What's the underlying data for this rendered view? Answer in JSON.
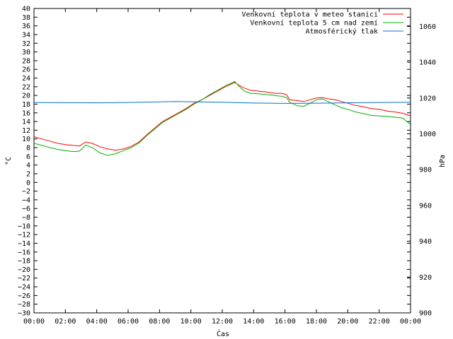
{
  "chart_data": {
    "type": "line",
    "xlabel": "Čas",
    "ylabel": "°C",
    "y2label": "hPa",
    "x_ticks": [
      "00:00",
      "02:00",
      "04:00",
      "06:00",
      "08:00",
      "10:00",
      "12:00",
      "14:00",
      "16:00",
      "18:00",
      "20:00",
      "22:00",
      "00:00"
    ],
    "xlim_hours": [
      0,
      24
    ],
    "ylim": [
      -30,
      40
    ],
    "y_step": 2,
    "y2lim": [
      900,
      1070
    ],
    "y2_ticks": [
      900,
      920,
      940,
      960,
      980,
      1000,
      1020,
      1040,
      1060
    ],
    "legend_position": "top-right",
    "grid": false,
    "series": [
      {
        "name": "Venkovní teplota v meteo stanici",
        "axis": "left",
        "color": "#ff0000",
        "x": [
          0,
          0.5,
          1,
          1.5,
          2,
          2.5,
          2.9,
          3.3,
          3.7,
          4.2,
          4.7,
          5.2,
          5.7,
          6.2,
          6.7,
          7.2,
          7.7,
          8.2,
          8.7,
          9.2,
          9.7,
          10.2,
          10.7,
          11.2,
          11.7,
          12.2,
          12.5,
          12.8,
          13.1,
          13.4,
          13.8,
          14.3,
          14.8,
          15.3,
          15.8,
          16.1,
          16.3,
          16.8,
          17.2,
          17.6,
          18,
          18.4,
          18.8,
          19.2,
          19.6,
          20,
          20.5,
          21,
          21.5,
          22,
          22.5,
          23,
          23.5,
          24
        ],
        "values": [
          10.5,
          10,
          9.5,
          9,
          8.7,
          8.5,
          8.4,
          9.3,
          9,
          8.2,
          7.7,
          7.4,
          7.7,
          8.3,
          9.3,
          11,
          12.5,
          14,
          15,
          16,
          17,
          18.2,
          19,
          20,
          21,
          22,
          22.5,
          23,
          22.3,
          21.7,
          21.2,
          21,
          20.8,
          20.5,
          20.5,
          20.2,
          19,
          18.8,
          18.6,
          19,
          19.4,
          19.5,
          19.2,
          19,
          18.6,
          18.2,
          17.7,
          17.4,
          17,
          16.8,
          16.4,
          16.2,
          15.9,
          15.3
        ]
      },
      {
        "name": "Venkovní teplota 5 cm nad zemí",
        "axis": "left",
        "color": "#00b000",
        "x": [
          0,
          0.5,
          1,
          1.5,
          2,
          2.5,
          2.9,
          3.3,
          3.7,
          4.2,
          4.7,
          5.2,
          5.7,
          6.2,
          6.7,
          7.2,
          7.7,
          8.2,
          8.7,
          9.2,
          9.7,
          10.2,
          10.7,
          11.2,
          11.7,
          12.2,
          12.5,
          12.8,
          13.1,
          13.4,
          13.8,
          14.3,
          14.8,
          15.3,
          15.8,
          16.1,
          16.3,
          16.8,
          17.2,
          17.6,
          18,
          18.4,
          18.8,
          19.2,
          19.6,
          20,
          20.5,
          21,
          21.5,
          22,
          22.5,
          23,
          23.5,
          24
        ],
        "values": [
          9,
          8.5,
          8,
          7.6,
          7.3,
          7.1,
          7.2,
          8.6,
          8,
          6.8,
          6.2,
          6.6,
          7.3,
          8,
          9.1,
          10.8,
          12.3,
          13.8,
          14.8,
          15.8,
          16.8,
          18,
          19,
          20.2,
          21.2,
          22.2,
          22.7,
          23.2,
          22,
          21,
          20.5,
          20.4,
          20.2,
          20,
          19.8,
          19.5,
          18.4,
          17.6,
          17.5,
          18.2,
          19,
          19.2,
          18.5,
          17.8,
          17.2,
          16.8,
          16.2,
          15.8,
          15.4,
          15.3,
          15.2,
          15,
          14.8,
          13.3
        ]
      },
      {
        "name": "Atmosférický tlak",
        "axis": "right",
        "color": "#0070d0",
        "x": [
          0,
          2,
          4,
          6,
          8,
          9,
          10,
          12,
          14,
          16,
          18,
          20,
          22,
          24
        ],
        "values": [
          1017.5,
          1017.4,
          1017.3,
          1017.5,
          1017.8,
          1018,
          1017.9,
          1017.6,
          1017.2,
          1017,
          1017.1,
          1017.3,
          1017.5,
          1017.6
        ]
      }
    ]
  }
}
